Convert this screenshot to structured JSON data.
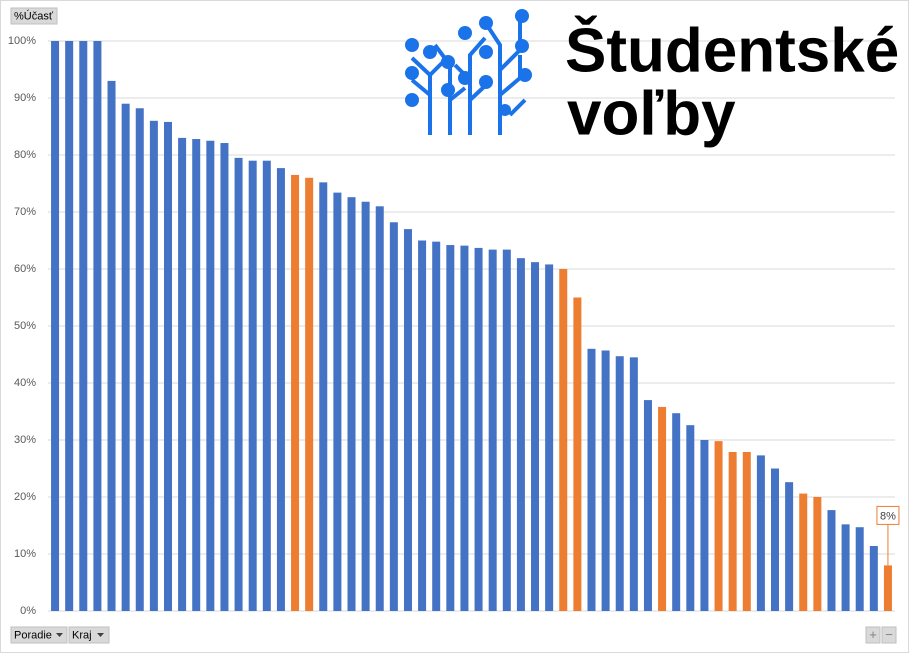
{
  "chart_data": {
    "type": "bar",
    "value_field": "%Účasť",
    "row_fields": [
      "Poradie",
      "Kraj"
    ],
    "categories": [
      null,
      null,
      null,
      null,
      null,
      null,
      null,
      null,
      null,
      null,
      null,
      null,
      null,
      null,
      null,
      null,
      null,
      null,
      null,
      null,
      null,
      null,
      null,
      null,
      null,
      null,
      null,
      null,
      null,
      null,
      null,
      null,
      null,
      null,
      null,
      null,
      null,
      null,
      null,
      null,
      null,
      null,
      null,
      null,
      null,
      null,
      null,
      null,
      null,
      null,
      null,
      null,
      null,
      null,
      null,
      null,
      null,
      null,
      null,
      null
    ],
    "values": [
      100,
      100,
      100,
      100,
      93,
      89,
      88.2,
      86,
      85.8,
      83,
      82.8,
      82.5,
      82.1,
      79.5,
      79,
      79,
      77.7,
      76.5,
      76,
      75.2,
      73.4,
      72.6,
      71.8,
      71,
      68.2,
      67,
      65,
      64.8,
      64.2,
      64.1,
      63.7,
      63.4,
      63.4,
      61.9,
      61.2,
      60.8,
      60,
      55,
      46,
      45.7,
      44.7,
      44.5,
      37,
      35.8,
      34.7,
      32.6,
      30,
      29.8,
      27.9,
      27.9,
      27.3,
      25,
      22.6,
      20.6,
      20,
      17.7,
      15.2,
      14.7,
      11.4,
      8
    ],
    "value_labels": [
      null,
      null,
      null,
      null,
      null,
      null,
      null,
      null,
      null,
      null,
      null,
      null,
      null,
      null,
      null,
      null,
      null,
      null,
      null,
      null,
      null,
      null,
      null,
      null,
      null,
      null,
      null,
      null,
      null,
      null,
      null,
      null,
      null,
      null,
      null,
      null,
      null,
      null,
      null,
      null,
      null,
      null,
      null,
      null,
      null,
      null,
      null,
      null,
      null,
      null,
      null,
      null,
      null,
      null,
      null,
      null,
      null,
      null,
      null,
      "8%"
    ],
    "colors": [
      "#4472c4",
      "#4472c4",
      "#4472c4",
      "#4472c4",
      "#4472c4",
      "#4472c4",
      "#4472c4",
      "#4472c4",
      "#4472c4",
      "#4472c4",
      "#4472c4",
      "#4472c4",
      "#4472c4",
      "#4472c4",
      "#4472c4",
      "#4472c4",
      "#4472c4",
      "#ed7d31",
      "#ed7d31",
      "#4472c4",
      "#4472c4",
      "#4472c4",
      "#4472c4",
      "#4472c4",
      "#4472c4",
      "#4472c4",
      "#4472c4",
      "#4472c4",
      "#4472c4",
      "#4472c4",
      "#4472c4",
      "#4472c4",
      "#4472c4",
      "#4472c4",
      "#4472c4",
      "#4472c4",
      "#ed7d31",
      "#ed7d31",
      "#4472c4",
      "#4472c4",
      "#4472c4",
      "#4472c4",
      "#4472c4",
      "#ed7d31",
      "#4472c4",
      "#4472c4",
      "#4472c4",
      "#ed7d31",
      "#ed7d31",
      "#ed7d31",
      "#4472c4",
      "#4472c4",
      "#4472c4",
      "#ed7d31",
      "#ed7d31",
      "#4472c4",
      "#4472c4",
      "#4472c4",
      "#4472c4",
      "#ed7d31"
    ],
    "ylim": [
      0,
      100
    ],
    "yticks": [
      {
        "value": 0,
        "label": "0%"
      },
      {
        "value": 10,
        "label": "10%"
      },
      {
        "value": 20,
        "label": "20%"
      },
      {
        "value": 30,
        "label": "30%"
      },
      {
        "value": 40,
        "label": "40%"
      },
      {
        "value": 50,
        "label": "50%"
      },
      {
        "value": 60,
        "label": "60%"
      },
      {
        "value": 70,
        "label": "70%"
      },
      {
        "value": 80,
        "label": "80%"
      },
      {
        "value": 90,
        "label": "90%"
      },
      {
        "value": 100,
        "label": "100%"
      }
    ],
    "grid": true
  },
  "logo": {
    "line1": "Študentské",
    "line2": "voľby"
  },
  "zoom_buttons": [
    "+",
    "−"
  ]
}
